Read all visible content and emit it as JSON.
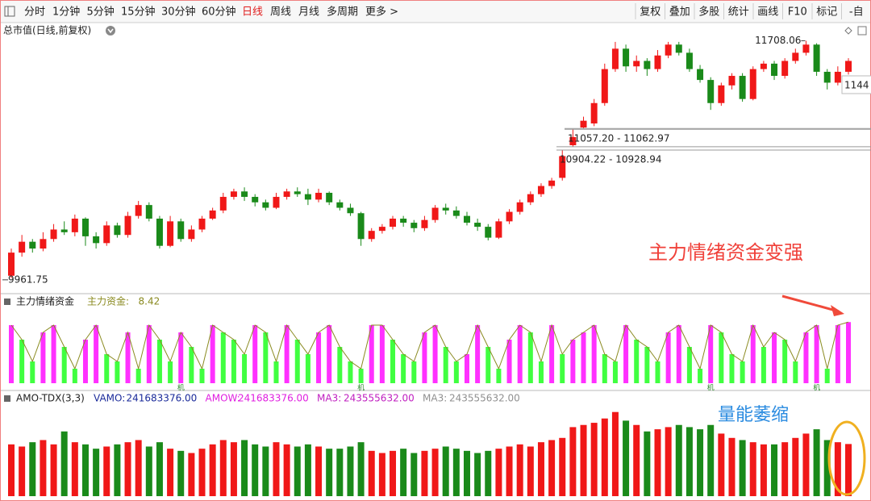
{
  "toolbar": {
    "left": [
      {
        "label": "分时"
      },
      {
        "label": "1分钟"
      },
      {
        "label": "5分钟"
      },
      {
        "label": "15分钟"
      },
      {
        "label": "30分钟"
      },
      {
        "label": "60分钟"
      },
      {
        "label": "日线",
        "selected": true
      },
      {
        "label": "周线"
      },
      {
        "label": "月线"
      },
      {
        "label": "多周期"
      },
      {
        "label": "更多 >"
      }
    ],
    "right": [
      {
        "label": "复权"
      },
      {
        "label": "叠加"
      },
      {
        "label": "多股"
      },
      {
        "label": "统计"
      },
      {
        "label": "画线"
      },
      {
        "label": "F10"
      },
      {
        "label": "标记"
      },
      {
        "label": "-自"
      }
    ]
  },
  "annotations": [
    {
      "text": "主力情绪资金变强",
      "color": "#f0413a"
    },
    {
      "text": "量能萎缩",
      "color": "#2a8be0"
    }
  ],
  "chart_data": [
    {
      "type": "candlestick",
      "title": "总市值(日线,前复权)",
      "ylim": [
        9860,
        11830
      ],
      "up_color": "#f01818",
      "down_color": "#1a8a1a",
      "last_price_tag": "1144",
      "gaps": [
        {
          "range": [
            11057.2,
            11062.97
          ],
          "label": "11057.20 - 11062.97"
        },
        {
          "range": [
            10904.22,
            10928.94
          ],
          "label": "10904.22 - 10928.94"
        }
      ],
      "candles": [
        [
          9980,
          10150,
          10180,
          9961.75
        ],
        [
          10150,
          10230,
          10280,
          10120
        ],
        [
          10230,
          10180,
          10250,
          10150
        ],
        [
          10180,
          10250,
          10300,
          10160
        ],
        [
          10250,
          10320,
          10360,
          10230
        ],
        [
          10320,
          10300,
          10380,
          10280
        ],
        [
          10300,
          10400,
          10430,
          10270
        ],
        [
          10400,
          10270,
          10410,
          10200
        ],
        [
          10270,
          10220,
          10300,
          10180
        ],
        [
          10220,
          10350,
          10380,
          10200
        ],
        [
          10350,
          10280,
          10370,
          10260
        ],
        [
          10280,
          10420,
          10450,
          10260
        ],
        [
          10420,
          10500,
          10530,
          10400
        ],
        [
          10500,
          10400,
          10520,
          10380
        ],
        [
          10400,
          10200,
          10420,
          10180
        ],
        [
          10200,
          10380,
          10420,
          10190
        ],
        [
          10380,
          10250,
          10400,
          10230
        ],
        [
          10250,
          10320,
          10350,
          10230
        ],
        [
          10320,
          10400,
          10420,
          10300
        ],
        [
          10400,
          10460,
          10480,
          10390
        ],
        [
          10460,
          10560,
          10590,
          10440
        ],
        [
          10560,
          10600,
          10620,
          10540
        ],
        [
          10600,
          10560,
          10630,
          10530
        ],
        [
          10560,
          10520,
          10580,
          10490
        ],
        [
          10520,
          10480,
          10540,
          10460
        ],
        [
          10480,
          10560,
          10590,
          10470
        ],
        [
          10560,
          10600,
          10620,
          10540
        ],
        [
          10600,
          10580,
          10630,
          10560
        ],
        [
          10580,
          10540,
          10620,
          10500
        ],
        [
          10540,
          10590,
          10620,
          10520
        ],
        [
          10590,
          10520,
          10600,
          10500
        ],
        [
          10520,
          10480,
          10540,
          10460
        ],
        [
          10480,
          10440,
          10510,
          10420
        ],
        [
          10440,
          10250,
          10450,
          10200
        ],
        [
          10250,
          10310,
          10330,
          10230
        ],
        [
          10310,
          10340,
          10360,
          10290
        ],
        [
          10340,
          10400,
          10420,
          10320
        ],
        [
          10400,
          10370,
          10420,
          10340
        ],
        [
          10370,
          10330,
          10390,
          10300
        ],
        [
          10330,
          10390,
          10420,
          10310
        ],
        [
          10390,
          10480,
          10500,
          10370
        ],
        [
          10480,
          10460,
          10510,
          10430
        ],
        [
          10460,
          10420,
          10490,
          10400
        ],
        [
          10420,
          10370,
          10450,
          10350
        ],
        [
          10370,
          10340,
          10400,
          10310
        ],
        [
          10340,
          10260,
          10360,
          10240
        ],
        [
          10260,
          10380,
          10400,
          10250
        ],
        [
          10380,
          10450,
          10470,
          10360
        ],
        [
          10450,
          10520,
          10540,
          10430
        ],
        [
          10520,
          10580,
          10600,
          10500
        ],
        [
          10580,
          10640,
          10660,
          10560
        ],
        [
          10640,
          10680,
          10700,
          10620
        ],
        [
          10700,
          10860,
          10904.22,
          10680
        ],
        [
          10940,
          11000,
          11057.2,
          10928.94
        ],
        [
          11070,
          11120,
          11150,
          11062.97
        ],
        [
          11100,
          11250,
          11280,
          11080
        ],
        [
          11250,
          11500,
          11540,
          11230
        ],
        [
          11500,
          11650,
          11700,
          11480
        ],
        [
          11650,
          11520,
          11680,
          11480
        ],
        [
          11520,
          11560,
          11600,
          11480
        ],
        [
          11560,
          11500,
          11580,
          11450
        ],
        [
          11500,
          11600,
          11640,
          11480
        ],
        [
          11600,
          11680,
          11700,
          11580
        ],
        [
          11680,
          11620,
          11700,
          11600
        ],
        [
          11620,
          11500,
          11650,
          11480
        ],
        [
          11500,
          11420,
          11530,
          11400
        ],
        [
          11420,
          11250,
          11440,
          11200
        ],
        [
          11250,
          11380,
          11400,
          11230
        ],
        [
          11380,
          11450,
          11470,
          11350
        ],
        [
          11450,
          11280,
          11470,
          11260
        ],
        [
          11280,
          11500,
          11520,
          11270
        ],
        [
          11500,
          11540,
          11560,
          11480
        ],
        [
          11540,
          11450,
          11560,
          11420
        ],
        [
          11450,
          11560,
          11580,
          11430
        ],
        [
          11560,
          11620,
          11650,
          11540
        ],
        [
          11620,
          11680,
          11708.06,
          11600
        ],
        [
          11680,
          11480,
          11690,
          11450
        ],
        [
          11480,
          11400,
          11500,
          11350
        ],
        [
          11400,
          11480,
          11520,
          11380
        ],
        [
          11480,
          11560,
          11580,
          11460
        ]
      ]
    },
    {
      "type": "bar",
      "title": "主力情绪资金",
      "series_name": "主力资金:",
      "ylim": [
        0,
        10
      ],
      "rise_color": "#ff30ff",
      "fall_color": "#40ff40",
      "line_color": "#8a8a20",
      "signal_label": "机",
      "signal_indices": [
        16,
        33,
        66,
        76
      ],
      "values": [
        8,
        6,
        3,
        7,
        8,
        5,
        2,
        6,
        8,
        4,
        3,
        7,
        2,
        8,
        6,
        3,
        7,
        5,
        2,
        8,
        7,
        6,
        4,
        8,
        7,
        3,
        8,
        6,
        4,
        7,
        8,
        5,
        3,
        2,
        8,
        8,
        6,
        4,
        3,
        7,
        8,
        5,
        3,
        4,
        8,
        5,
        2,
        6,
        8,
        7,
        3,
        8,
        4,
        6,
        7,
        8,
        4,
        3,
        8,
        6,
        5,
        3,
        7,
        8,
        5,
        2,
        8,
        7,
        4,
        3,
        8,
        5,
        7,
        6,
        3,
        7,
        8,
        2,
        8,
        8.42
      ]
    },
    {
      "type": "bar",
      "title": "AMO-TDX(3,3)",
      "ylim": [
        0,
        430000000
      ],
      "stats": [
        {
          "name": "VAMO:",
          "value": 241683376,
          "label": "241683376.00",
          "color": "#1a2a9a"
        },
        {
          "name": "AMOW:",
          "value": 241683376,
          "label": "241683376.00",
          "color": "#e020e0"
        },
        {
          "name": "MA3:",
          "value": 243555632,
          "label": "243555632.00",
          "color": "#c020c0"
        },
        {
          "name": "MA3:",
          "value": 243555632,
          "label": "243555632.00",
          "color": "#909090"
        }
      ],
      "values": [
        240000000.0,
        230000000.0,
        250000000.0,
        260000000.0,
        240000000.0,
        300000000.0,
        250000000.0,
        240000000.0,
        220000000.0,
        230000000.0,
        240000000.0,
        250000000.0,
        260000000.0,
        230000000.0,
        250000000.0,
        220000000.0,
        210000000.0,
        200000000.0,
        220000000.0,
        240000000.0,
        260000000.0,
        250000000.0,
        260000000.0,
        240000000.0,
        230000000.0,
        250000000.0,
        240000000.0,
        230000000.0,
        240000000.0,
        230000000.0,
        220000000.0,
        220000000.0,
        230000000.0,
        250000000.0,
        210000000.0,
        200000000.0,
        210000000.0,
        220000000.0,
        200000000.0,
        210000000.0,
        220000000.0,
        230000000.0,
        220000000.0,
        210000000.0,
        200000000.0,
        210000000.0,
        220000000.0,
        230000000.0,
        240000000.0,
        230000000.0,
        250000000.0,
        260000000.0,
        270000000.0,
        320000000.0,
        330000000.0,
        340000000.0,
        360000000.0,
        390000000.0,
        350000000.0,
        330000000.0,
        300000000.0,
        310000000.0,
        320000000.0,
        330000000.0,
        320000000.0,
        310000000.0,
        330000000.0,
        290000000.0,
        270000000.0,
        260000000.0,
        250000000.0,
        240000000.0,
        240000000.0,
        250000000.0,
        270000000.0,
        290000000.0,
        310000000.0,
        260000000.0,
        250000000.0,
        241683376
      ]
    }
  ]
}
